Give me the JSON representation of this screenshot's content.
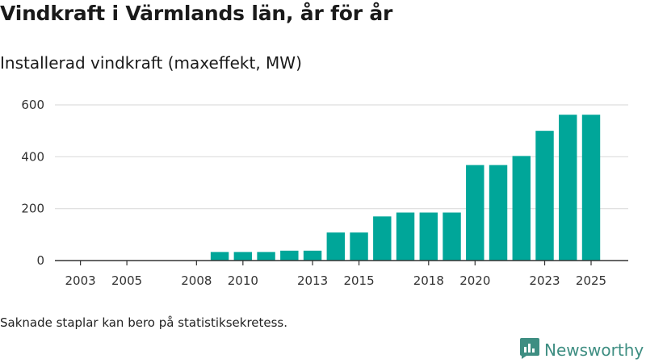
{
  "title": "Vindkraft i Värmlands län, år för år",
  "subtitle": "Installerad vindkraft (maxeffekt, MW)",
  "footnote": "Saknade staplar kan bero på statistiksekretess.",
  "brand": {
    "name": "Newsworthy",
    "icon": "newsworthy-logo-icon"
  },
  "colors": {
    "bar": "#00a699",
    "grid": "#dddddd",
    "axis": "#333333",
    "brand": "#3e8e82"
  },
  "chart_data": {
    "type": "bar",
    "title": "Vindkraft i Värmlands län, år för år",
    "ylabel": "Installerad vindkraft (maxeffekt, MW)",
    "xlabel": "",
    "categories": [
      2003,
      2004,
      2005,
      2006,
      2007,
      2008,
      2009,
      2010,
      2011,
      2012,
      2013,
      2014,
      2015,
      2016,
      2017,
      2018,
      2019,
      2020,
      2021,
      2022,
      2023,
      2024,
      2025
    ],
    "values": [
      null,
      null,
      null,
      null,
      null,
      null,
      33,
      33,
      33,
      38,
      38,
      108,
      108,
      170,
      185,
      185,
      185,
      368,
      368,
      403,
      500,
      562,
      562
    ],
    "xlim": [
      2001.9,
      2026.6
    ],
    "ylim": [
      0,
      600
    ],
    "y_ticks": [
      0,
      200,
      400,
      600
    ],
    "x_ticks": [
      2003,
      2005,
      2008,
      2010,
      2013,
      2015,
      2018,
      2020,
      2023,
      2025
    ],
    "grid": true
  }
}
